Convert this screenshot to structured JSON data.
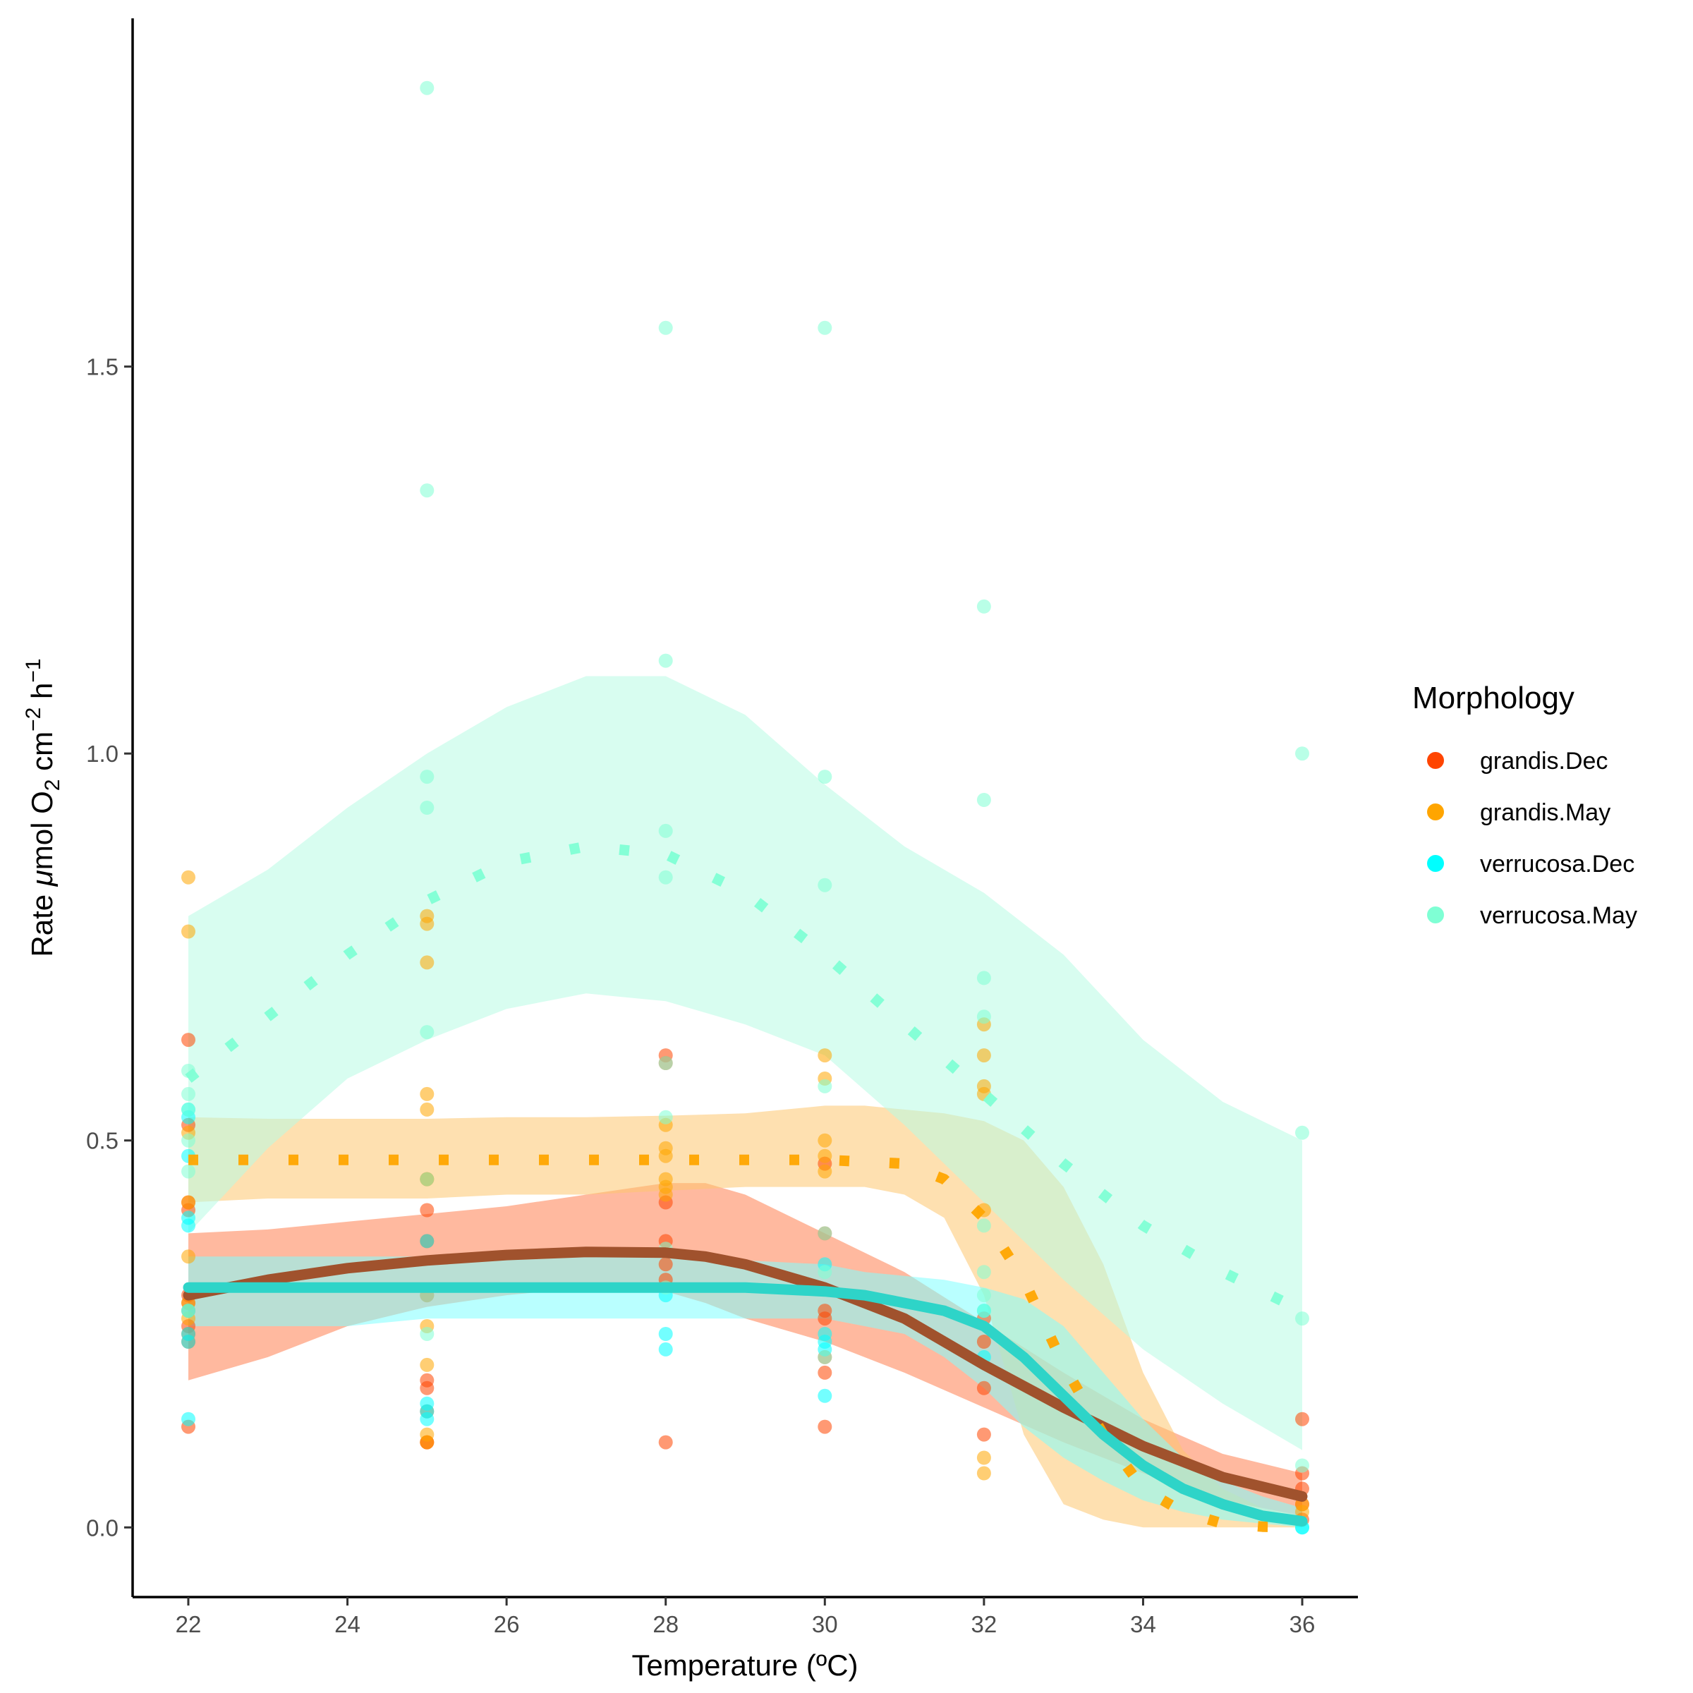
{
  "chart_data": {
    "type": "scatter",
    "xlabel": "Temperature (ºC)",
    "ylabel": {
      "prefix": "Rate ",
      "mu": "μ",
      "mol": "mol O",
      "sub": "2",
      "cm": " cm",
      "sup1": "−2",
      "h": " h",
      "sup2": "−1"
    },
    "xlim": [
      21.3,
      36.7
    ],
    "ylim": [
      -0.09,
      1.95
    ],
    "x_ticks": [
      22,
      24,
      26,
      28,
      30,
      32,
      34,
      36
    ],
    "y_ticks": [
      0.0,
      0.5,
      1.0,
      1.5
    ],
    "x_tick_labels": [
      "22",
      "24",
      "26",
      "28",
      "30",
      "32",
      "34",
      "36"
    ],
    "y_tick_labels": [
      "0.0",
      "0.5",
      "1.0",
      "1.5"
    ],
    "grid": false,
    "legend": {
      "title": "Morphology",
      "position": "right"
    },
    "series": [
      {
        "name": "grandis.Dec",
        "color": "#FF4500",
        "band_color": "#FF7F50",
        "line_color": "#A0522D",
        "line_style": "solid",
        "points": [
          [
            22,
            0.63
          ],
          [
            22,
            0.52
          ],
          [
            22,
            0.42
          ],
          [
            22,
            0.41
          ],
          [
            22,
            0.3
          ],
          [
            22,
            0.29
          ],
          [
            22,
            0.28
          ],
          [
            22,
            0.26
          ],
          [
            22,
            0.25
          ],
          [
            22,
            0.24
          ],
          [
            22,
            0.13
          ],
          [
            25,
            0.45
          ],
          [
            25,
            0.41
          ],
          [
            25,
            0.37
          ],
          [
            25,
            0.3
          ],
          [
            25,
            0.19
          ],
          [
            25,
            0.18
          ],
          [
            25,
            0.15
          ],
          [
            25,
            0.11
          ],
          [
            25,
            0.11
          ],
          [
            28,
            0.61
          ],
          [
            28,
            0.6
          ],
          [
            28,
            0.42
          ],
          [
            28,
            0.37
          ],
          [
            28,
            0.34
          ],
          [
            28,
            0.32
          ],
          [
            28,
            0.11
          ],
          [
            30,
            0.47
          ],
          [
            30,
            0.38
          ],
          [
            30,
            0.28
          ],
          [
            30,
            0.27
          ],
          [
            30,
            0.22
          ],
          [
            30,
            0.2
          ],
          [
            30,
            0.13
          ],
          [
            32,
            0.27
          ],
          [
            32,
            0.24
          ],
          [
            32,
            0.18
          ],
          [
            32,
            0.12
          ],
          [
            36,
            0.14
          ],
          [
            36,
            0.07
          ],
          [
            36,
            0.05
          ],
          [
            36,
            0.03
          ],
          [
            36,
            0.01
          ]
        ],
        "fit": {
          "x": [
            22,
            23,
            24,
            25,
            26,
            27,
            28,
            28.5,
            29,
            30,
            31,
            32,
            33,
            34,
            35,
            36
          ],
          "y": [
            0.3,
            0.32,
            0.335,
            0.345,
            0.352,
            0.356,
            0.355,
            0.35,
            0.34,
            0.31,
            0.27,
            0.21,
            0.155,
            0.105,
            0.065,
            0.04
          ]
        },
        "band": {
          "x": [
            22,
            23,
            24,
            25,
            26,
            27,
            28,
            28.5,
            29,
            30,
            31,
            32,
            33,
            34,
            35,
            36
          ],
          "lower": [
            0.19,
            0.22,
            0.26,
            0.285,
            0.3,
            0.31,
            0.305,
            0.29,
            0.27,
            0.24,
            0.2,
            0.155,
            0.11,
            0.07,
            0.035,
            0.015
          ],
          "upper": [
            0.38,
            0.385,
            0.395,
            0.405,
            0.415,
            0.43,
            0.445,
            0.445,
            0.43,
            0.38,
            0.33,
            0.265,
            0.2,
            0.14,
            0.095,
            0.07
          ]
        }
      },
      {
        "name": "grandis.May",
        "color": "#FFA500",
        "band_color": "#FDC670",
        "line_color": "#FFA500",
        "line_style": "dotted",
        "points": [
          [
            22,
            0.84
          ],
          [
            22,
            0.77
          ],
          [
            22,
            0.51
          ],
          [
            22,
            0.42
          ],
          [
            22,
            0.35
          ],
          [
            22,
            0.29
          ],
          [
            22,
            0.27
          ],
          [
            25,
            0.79
          ],
          [
            25,
            0.78
          ],
          [
            25,
            0.73
          ],
          [
            25,
            0.56
          ],
          [
            25,
            0.54
          ],
          [
            25,
            0.45
          ],
          [
            25,
            0.26
          ],
          [
            25,
            0.21
          ],
          [
            25,
            0.12
          ],
          [
            25,
            0.11
          ],
          [
            28,
            0.52
          ],
          [
            28,
            0.49
          ],
          [
            28,
            0.48
          ],
          [
            28,
            0.45
          ],
          [
            28,
            0.44
          ],
          [
            28,
            0.43
          ],
          [
            30,
            0.61
          ],
          [
            30,
            0.58
          ],
          [
            30,
            0.5
          ],
          [
            30,
            0.48
          ],
          [
            30,
            0.46
          ],
          [
            32,
            0.65
          ],
          [
            32,
            0.61
          ],
          [
            32,
            0.57
          ],
          [
            32,
            0.56
          ],
          [
            32,
            0.41
          ],
          [
            32,
            0.09
          ],
          [
            32,
            0.07
          ],
          [
            36,
            0.03
          ],
          [
            36,
            0.02
          ]
        ],
        "fit": {
          "x": [
            22,
            23,
            24,
            25,
            26,
            27,
            28,
            29,
            30,
            31,
            31.5,
            32,
            32.5,
            33,
            33.5,
            34,
            34.5,
            35,
            35.5,
            36
          ],
          "y": [
            0.475,
            0.475,
            0.475,
            0.475,
            0.475,
            0.475,
            0.475,
            0.475,
            0.475,
            0.47,
            0.45,
            0.4,
            0.32,
            0.21,
            0.12,
            0.05,
            0.02,
            0.005,
            0.001,
            0.0
          ]
        },
        "band": {
          "x": [
            22,
            23,
            24,
            25,
            26,
            27,
            28,
            29,
            30,
            30.5,
            31,
            31.5,
            32,
            32.5,
            33,
            33.5,
            34,
            34.5,
            35,
            35.5,
            36
          ],
          "lower": [
            0.42,
            0.425,
            0.425,
            0.425,
            0.43,
            0.43,
            0.435,
            0.44,
            0.44,
            0.44,
            0.43,
            0.4,
            0.3,
            0.12,
            0.03,
            0.01,
            0.0,
            0.0,
            0.0,
            0.0,
            0.0
          ],
          "upper": [
            0.53,
            0.528,
            0.528,
            0.528,
            0.53,
            0.53,
            0.532,
            0.535,
            0.545,
            0.545,
            0.54,
            0.535,
            0.525,
            0.5,
            0.44,
            0.34,
            0.2,
            0.1,
            0.05,
            0.025,
            0.015
          ]
        }
      },
      {
        "name": "verrucosa.Dec",
        "color": "#00FFFF",
        "band_color": "#7FFFFF",
        "line_color": "#2ED4C8",
        "line_style": "solid",
        "points": [
          [
            22,
            0.54
          ],
          [
            22,
            0.53
          ],
          [
            22,
            0.48
          ],
          [
            22,
            0.4
          ],
          [
            22,
            0.39
          ],
          [
            22,
            0.28
          ],
          [
            22,
            0.25
          ],
          [
            22,
            0.24
          ],
          [
            22,
            0.14
          ],
          [
            25,
            0.37
          ],
          [
            25,
            0.15
          ],
          [
            25,
            0.14
          ],
          [
            25,
            0.16
          ],
          [
            28,
            0.25
          ],
          [
            28,
            0.23
          ],
          [
            28,
            0.3
          ],
          [
            30,
            0.34
          ],
          [
            30,
            0.25
          ],
          [
            30,
            0.24
          ],
          [
            30,
            0.23
          ],
          [
            30,
            0.17
          ],
          [
            32,
            0.22
          ],
          [
            32,
            0.28
          ],
          [
            36,
            0.0
          ],
          [
            36,
            0.0
          ]
        ],
        "fit": {
          "x": [
            22,
            23,
            24,
            25,
            26,
            27,
            28,
            29,
            30,
            30.5,
            31,
            31.5,
            32,
            32.5,
            33,
            33.5,
            34,
            34.5,
            35,
            35.5,
            36
          ],
          "y": [
            0.31,
            0.31,
            0.31,
            0.31,
            0.31,
            0.31,
            0.31,
            0.31,
            0.305,
            0.3,
            0.29,
            0.28,
            0.26,
            0.22,
            0.17,
            0.12,
            0.08,
            0.05,
            0.03,
            0.015,
            0.008
          ]
        },
        "band": {
          "x": [
            22,
            23,
            24,
            25,
            26,
            27,
            28,
            29,
            30,
            30.5,
            31,
            31.5,
            32,
            32.5,
            33,
            33.5,
            34,
            34.5,
            35,
            35.5,
            36
          ],
          "lower": [
            0.26,
            0.26,
            0.26,
            0.27,
            0.27,
            0.27,
            0.27,
            0.27,
            0.27,
            0.26,
            0.25,
            0.22,
            0.18,
            0.13,
            0.09,
            0.06,
            0.035,
            0.02,
            0.01,
            0.005,
            0.0
          ],
          "upper": [
            0.35,
            0.35,
            0.35,
            0.35,
            0.35,
            0.35,
            0.35,
            0.345,
            0.34,
            0.33,
            0.325,
            0.32,
            0.31,
            0.295,
            0.26,
            0.2,
            0.14,
            0.09,
            0.06,
            0.04,
            0.025
          ]
        }
      },
      {
        "name": "verrucosa.May",
        "color": "#7FFFD4",
        "band_color": "#B8FBE3",
        "line_color": "#7FFFD4",
        "line_style": "dotted",
        "points": [
          [
            22,
            0.59
          ],
          [
            22,
            0.56
          ],
          [
            22,
            0.54
          ],
          [
            22,
            0.5
          ],
          [
            22,
            0.46
          ],
          [
            22,
            0.28
          ],
          [
            25,
            1.86
          ],
          [
            25,
            1.34
          ],
          [
            25,
            0.97
          ],
          [
            25,
            0.93
          ],
          [
            25,
            0.64
          ],
          [
            25,
            0.45
          ],
          [
            25,
            0.3
          ],
          [
            25,
            0.25
          ],
          [
            28,
            1.55
          ],
          [
            28,
            1.12
          ],
          [
            28,
            0.9
          ],
          [
            28,
            0.84
          ],
          [
            28,
            0.6
          ],
          [
            28,
            0.53
          ],
          [
            28,
            0.36
          ],
          [
            28,
            0.31
          ],
          [
            30,
            1.55
          ],
          [
            30,
            0.97
          ],
          [
            30,
            0.83
          ],
          [
            30,
            0.57
          ],
          [
            30,
            0.38
          ],
          [
            30,
            0.33
          ],
          [
            30,
            0.22
          ],
          [
            32,
            1.19
          ],
          [
            32,
            0.94
          ],
          [
            32,
            0.71
          ],
          [
            32,
            0.66
          ],
          [
            32,
            0.39
          ],
          [
            32,
            0.33
          ],
          [
            32,
            0.3
          ],
          [
            32,
            0.28
          ],
          [
            36,
            1.0
          ],
          [
            36,
            0.51
          ],
          [
            36,
            0.27
          ],
          [
            36,
            0.08
          ]
        ],
        "fit": {
          "x": [
            22,
            23,
            24,
            25,
            26,
            27,
            28,
            29,
            30,
            31,
            32,
            33,
            34,
            35,
            36
          ],
          "y": [
            0.58,
            0.66,
            0.74,
            0.81,
            0.86,
            0.88,
            0.87,
            0.82,
            0.74,
            0.65,
            0.56,
            0.47,
            0.39,
            0.33,
            0.28
          ]
        },
        "band": {
          "x": [
            22,
            23,
            24,
            25,
            26,
            27,
            28,
            29,
            30,
            31,
            32,
            33,
            34,
            35,
            36
          ],
          "lower": [
            0.38,
            0.49,
            0.58,
            0.63,
            0.67,
            0.69,
            0.68,
            0.65,
            0.61,
            0.52,
            0.42,
            0.32,
            0.23,
            0.16,
            0.1
          ],
          "upper": [
            0.79,
            0.85,
            0.93,
            1.0,
            1.06,
            1.1,
            1.1,
            1.05,
            0.96,
            0.88,
            0.82,
            0.74,
            0.63,
            0.55,
            0.5
          ]
        }
      }
    ]
  }
}
